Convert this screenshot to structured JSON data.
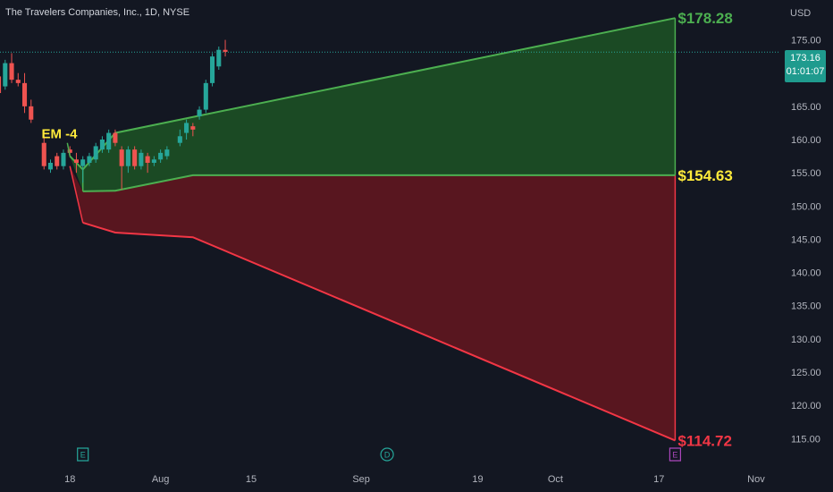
{
  "header": {
    "title": "The Travelers Companies, Inc., 1D, NYSE"
  },
  "axis": {
    "currency": "USD"
  },
  "last_price": {
    "price": "173.16",
    "countdown": "01:01:07"
  },
  "colors": {
    "bg": "#131722",
    "up": "#26a69a",
    "down": "#ef5350",
    "green_line": "#4caf50",
    "green_fill": "#1b4d25",
    "red_line": "#f23645",
    "red_fill": "#5c1620",
    "label_yellow": "#ffeb3b",
    "axis_text": "#b2b5be"
  },
  "chart_data": {
    "type": "candlestick",
    "title": "The Travelers Companies, Inc., 1D, NYSE",
    "ylabel": "USD",
    "ylim": [
      111,
      181
    ],
    "y_ticks": [
      115,
      120,
      125,
      130,
      135,
      140,
      145,
      150,
      155,
      160,
      165,
      170,
      175
    ],
    "y_tick_labels": [
      "115.00",
      "120.00",
      "125.00",
      "130.00",
      "135.00",
      "140.00",
      "145.00",
      "150.00",
      "155.00",
      "160.00",
      "165.00",
      "170.00",
      "175.00"
    ],
    "x_ticks": [
      {
        "label": "18",
        "day": 18
      },
      {
        "label": "Aug",
        "day": 32
      },
      {
        "label": "15",
        "day": 46
      },
      {
        "label": "Sep",
        "day": 63
      },
      {
        "label": "19",
        "day": 81
      },
      {
        "label": "Oct",
        "day": 93
      },
      {
        "label": "17",
        "day": 109
      },
      {
        "label": "Nov",
        "day": 124
      }
    ],
    "x_range": [
      7.2,
      127.6
    ],
    "candles": [
      {
        "day": 7,
        "o": 169.5,
        "h": 171.0,
        "l": 166.0,
        "c": 167.0
      },
      {
        "day": 8,
        "o": 168.0,
        "h": 172.0,
        "l": 167.5,
        "c": 171.5
      },
      {
        "day": 9,
        "o": 171.5,
        "h": 173.0,
        "l": 168.5,
        "c": 169.0
      },
      {
        "day": 10,
        "o": 169.0,
        "h": 170.0,
        "l": 168.0,
        "c": 168.5
      },
      {
        "day": 11,
        "o": 168.5,
        "h": 170.0,
        "l": 164.0,
        "c": 165.0
      },
      {
        "day": 12,
        "o": 165.0,
        "h": 166.0,
        "l": 162.5,
        "c": 163.0
      },
      {
        "day": 14,
        "o": 159.5,
        "h": 160.5,
        "l": 155.5,
        "c": 156.0
      },
      {
        "day": 15,
        "o": 155.5,
        "h": 157.0,
        "l": 155.0,
        "c": 156.5
      },
      {
        "day": 16,
        "o": 157.5,
        "h": 158.0,
        "l": 155.5,
        "c": 156.0
      },
      {
        "day": 17,
        "o": 156.0,
        "h": 158.5,
        "l": 155.5,
        "c": 158.0
      },
      {
        "day": 18,
        "o": 158.5,
        "h": 159.0,
        "l": 157.5,
        "c": 158.0
      },
      {
        "day": 19,
        "o": 157.0,
        "h": 158.0,
        "l": 155.0,
        "c": 156.5
      },
      {
        "day": 20,
        "o": 156.0,
        "h": 157.5,
        "l": 153.5,
        "c": 157.0
      },
      {
        "day": 21,
        "o": 156.5,
        "h": 158.0,
        "l": 156.0,
        "c": 157.5
      },
      {
        "day": 22,
        "o": 157.0,
        "h": 159.5,
        "l": 156.5,
        "c": 159.0
      },
      {
        "day": 23,
        "o": 158.5,
        "h": 160.5,
        "l": 158.0,
        "c": 160.0
      },
      {
        "day": 24,
        "o": 158.5,
        "h": 161.5,
        "l": 158.0,
        "c": 161.0
      },
      {
        "day": 25,
        "o": 161.0,
        "h": 161.5,
        "l": 159.0,
        "c": 159.5
      },
      {
        "day": 26,
        "o": 158.5,
        "h": 159.0,
        "l": 152.5,
        "c": 156.0
      },
      {
        "day": 27,
        "o": 156.0,
        "h": 159.0,
        "l": 155.0,
        "c": 158.5
      },
      {
        "day": 28,
        "o": 158.5,
        "h": 159.0,
        "l": 155.5,
        "c": 156.0
      },
      {
        "day": 29,
        "o": 156.0,
        "h": 158.5,
        "l": 155.5,
        "c": 158.0
      },
      {
        "day": 30,
        "o": 157.5,
        "h": 158.0,
        "l": 155.0,
        "c": 156.5
      },
      {
        "day": 31,
        "o": 156.5,
        "h": 157.5,
        "l": 156.0,
        "c": 157.0
      },
      {
        "day": 32,
        "o": 157.0,
        "h": 158.5,
        "l": 156.5,
        "c": 158.0
      },
      {
        "day": 33,
        "o": 157.5,
        "h": 159.0,
        "l": 157.0,
        "c": 158.5
      },
      {
        "day": 35,
        "o": 159.5,
        "h": 161.5,
        "l": 159.0,
        "c": 160.5
      },
      {
        "day": 36,
        "o": 161.0,
        "h": 163.0,
        "l": 160.0,
        "c": 162.5
      },
      {
        "day": 37,
        "o": 162.0,
        "h": 162.5,
        "l": 160.5,
        "c": 161.5
      },
      {
        "day": 38,
        "o": 163.5,
        "h": 165.0,
        "l": 163.0,
        "c": 164.5
      },
      {
        "day": 39,
        "o": 164.5,
        "h": 169.0,
        "l": 164.0,
        "c": 168.5
      },
      {
        "day": 40,
        "o": 168.5,
        "h": 173.0,
        "l": 168.0,
        "c": 172.5
      },
      {
        "day": 41,
        "o": 171.0,
        "h": 174.0,
        "l": 170.5,
        "c": 173.5
      },
      {
        "day": 42,
        "o": 173.5,
        "h": 175.0,
        "l": 172.5,
        "c": 173.2
      }
    ],
    "green_band": {
      "upper": [
        [
          18,
          157.5
        ],
        [
          20,
          155.5
        ],
        [
          25,
          161.0
        ],
        [
          111.5,
          178.28
        ]
      ],
      "lower": [
        [
          20,
          152.2
        ],
        [
          25,
          152.3
        ],
        [
          37,
          154.63
        ],
        [
          111.5,
          154.63
        ]
      ]
    },
    "red_band": {
      "upper": [
        [
          18,
          156.0
        ],
        [
          20,
          152.2
        ],
        [
          25,
          152.3
        ],
        [
          37,
          154.63
        ],
        [
          111.5,
          154.63
        ]
      ],
      "lower": [
        [
          20,
          147.5
        ],
        [
          25,
          146.0
        ],
        [
          37,
          145.3
        ],
        [
          111.5,
          114.72
        ]
      ]
    },
    "annotations": [
      {
        "text": "EM -4",
        "day": 15,
        "price": 161.0
      },
      {
        "text": "$178.28",
        "day": 111.5,
        "price": 178.28
      },
      {
        "text": "$154.63",
        "day": 111.5,
        "price": 154.63
      },
      {
        "text": "$114.72",
        "day": 111.5,
        "price": 114.72
      }
    ],
    "last_price_line": 173.16,
    "event_markers": [
      {
        "label": "E",
        "day": 20,
        "color": "#26a69a"
      },
      {
        "label": "D",
        "day": 67,
        "color": "#26a69a"
      },
      {
        "label": "E",
        "day": 111.5,
        "color": "#ab47bc"
      }
    ]
  }
}
